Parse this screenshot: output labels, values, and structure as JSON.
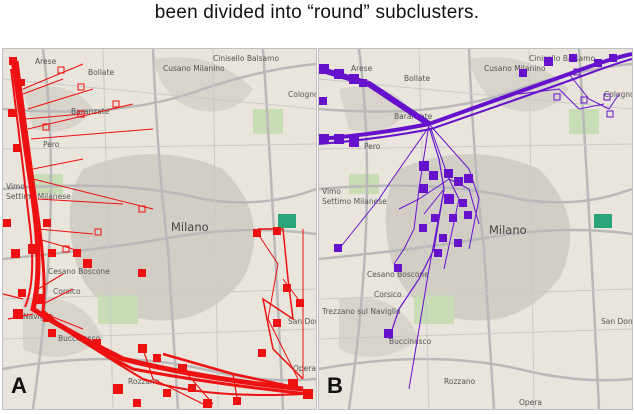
{
  "caption": "been divided into “round” subclusters.",
  "colors": {
    "panel_a": "#ee1111",
    "panel_b": "#6611cc",
    "map_bg": "#e9e5dc",
    "road": "#b9b9b9",
    "urban": "#d2cec6",
    "park": "#c8dcb5",
    "water": "#aad3df"
  },
  "panels": [
    {
      "id": "A",
      "label": "A",
      "towns": [
        "Arese",
        "Bollate",
        "Cinisello Balsamo",
        "Cusano Milanino",
        "Baranzate",
        "Cologno Monzese",
        "Pero",
        "Vimo",
        "Settimo Milanese",
        "Milano",
        "Cesano Boscone",
        "Corsico",
        "Naviglio",
        "Buccinasco",
        "Rozzano",
        "San Donato Milanese",
        "Opera"
      ]
    },
    {
      "id": "B",
      "label": "B",
      "towns": [
        "Arese",
        "Bollate",
        "Cinisello Balsamo",
        "Cusano Milanino",
        "Baranzate",
        "Cologno Monzese",
        "Pero",
        "Vimo",
        "Settimo Milanese",
        "Milano",
        "Cesano Boscone",
        "Corsico",
        "Trezzano sul Naviglio",
        "Buccinasco",
        "Rozzano",
        "San Donato Milanese",
        "Opera"
      ]
    }
  ]
}
